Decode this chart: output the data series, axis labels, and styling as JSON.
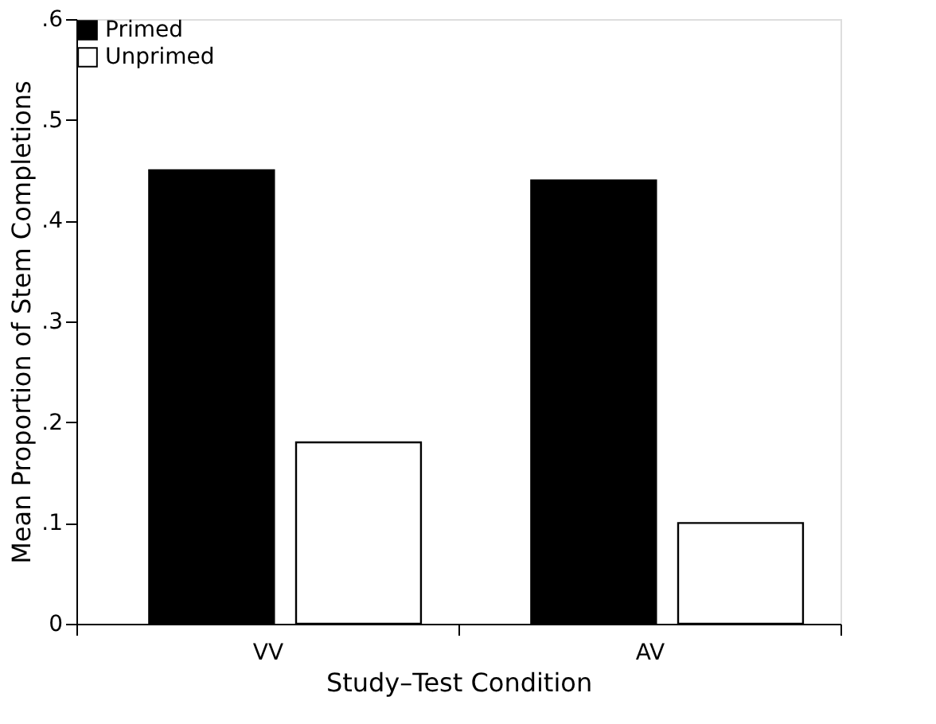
{
  "chart_data": {
    "type": "bar",
    "xlabel": "Study–Test Condition",
    "ylabel": "Mean Proportion of Stem Completions",
    "categories": [
      "VV",
      "AV"
    ],
    "series": [
      {
        "name": "Primed",
        "color": "#000000",
        "values": [
          0.45,
          0.44
        ]
      },
      {
        "name": "Unprimed",
        "color": "#ffffff",
        "values": [
          0.18,
          0.1
        ]
      }
    ],
    "ylim": [
      0,
      0.6
    ],
    "yticks": [
      0,
      {
        "value": 0.1,
        "label": ".1"
      },
      {
        "value": 0.2,
        "label": ".2"
      },
      {
        "value": 0.3,
        "label": ".3"
      },
      {
        "value": 0.4,
        "label": ".4"
      },
      {
        "value": 0.5,
        "label": ".5"
      },
      {
        "value": 0.6,
        "label": ".6"
      }
    ],
    "grid": false,
    "legend": "top left"
  }
}
